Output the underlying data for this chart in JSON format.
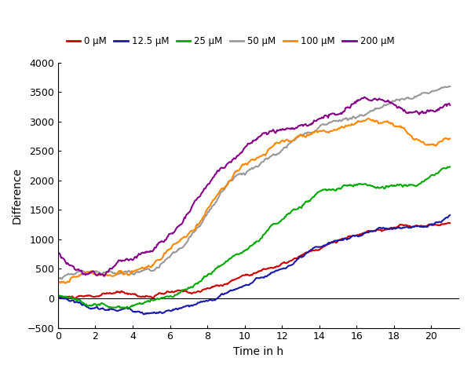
{
  "title": "",
  "xlabel": "Time in h",
  "ylabel": "Difference",
  "xlim": [
    0,
    21.5
  ],
  "ylim": [
    -500,
    4000
  ],
  "xticks": [
    0,
    2,
    4,
    6,
    8,
    10,
    12,
    14,
    16,
    18,
    20
  ],
  "yticks": [
    -500,
    0,
    500,
    1000,
    1500,
    2000,
    2500,
    3000,
    3500,
    4000
  ],
  "legend_labels": [
    "0 μM",
    "12.5 μM",
    "25 μM",
    "50 μM",
    "100 μM",
    "200 μM"
  ],
  "colors": [
    "#cc0000",
    "#1a1aaa",
    "#00aa00",
    "#999999",
    "#ff8800",
    "#880088"
  ],
  "linewidth": 1.5,
  "figsize": [
    6.0,
    4.7
  ],
  "dpi": 100
}
